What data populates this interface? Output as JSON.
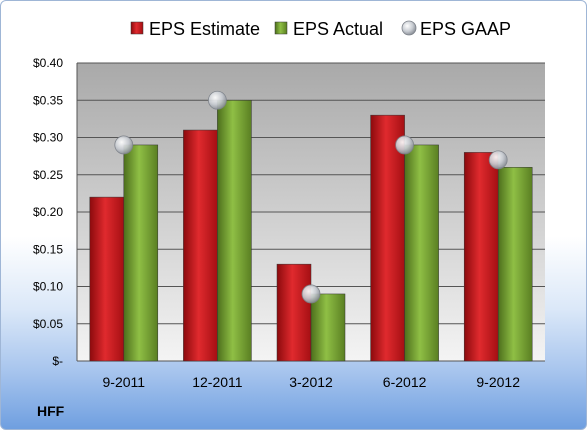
{
  "chart_data": {
    "type": "bar",
    "categories": [
      "9-2011",
      "12-2011",
      "3-2012",
      "6-2012",
      "9-2012"
    ],
    "series": [
      {
        "name": "EPS Estimate",
        "kind": "bar",
        "color": "#c9161b",
        "values": [
          0.22,
          0.31,
          0.13,
          0.33,
          0.28
        ]
      },
      {
        "name": "EPS Actual",
        "kind": "bar",
        "color": "#6e9a2c",
        "values": [
          0.29,
          0.35,
          0.09,
          0.29,
          0.26
        ]
      },
      {
        "name": "EPS GAAP",
        "kind": "marker",
        "color": "#c0c4cc",
        "values": [
          0.29,
          0.35,
          0.09,
          0.29,
          0.27
        ]
      }
    ],
    "ylim": [
      0,
      0.4
    ],
    "yticks": [
      0,
      0.05,
      0.1,
      0.15,
      0.2,
      0.25,
      0.3,
      0.35,
      0.4
    ],
    "ytick_labels": [
      "$-",
      "$0.05",
      "$0.10",
      "$0.15",
      "$0.20",
      "$0.25",
      "$0.30",
      "$0.35",
      "$0.40"
    ],
    "grid": true,
    "legend_position": "top-center"
  },
  "ticker": "HFF"
}
